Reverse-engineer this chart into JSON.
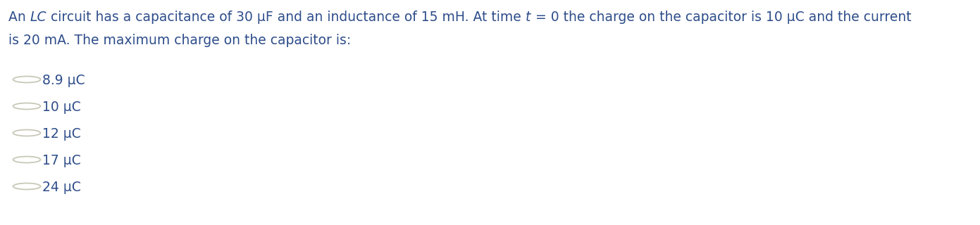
{
  "question_parts_line1": [
    {
      "text": "An ",
      "italic": false
    },
    {
      "text": "LC",
      "italic": true
    },
    {
      "text": " circuit has a capacitance of 30 μF and an inductance of 15 mH. At time ",
      "italic": false
    },
    {
      "text": "t",
      "italic": true
    },
    {
      "text": " = 0 the charge on the capacitor is 10 μC and the current",
      "italic": false
    }
  ],
  "question_line2": "is 20 mA. The maximum charge on the capacitor is:",
  "options": [
    "8.9 μC",
    "10 μC",
    "12 μC",
    "17 μC",
    "24 μC"
  ],
  "text_color": "#2e4d8a",
  "circle_edge_color": "#c8c8b8",
  "bg_color": "#ffffff",
  "font_size_question": 13.5,
  "font_size_options": 13.5
}
